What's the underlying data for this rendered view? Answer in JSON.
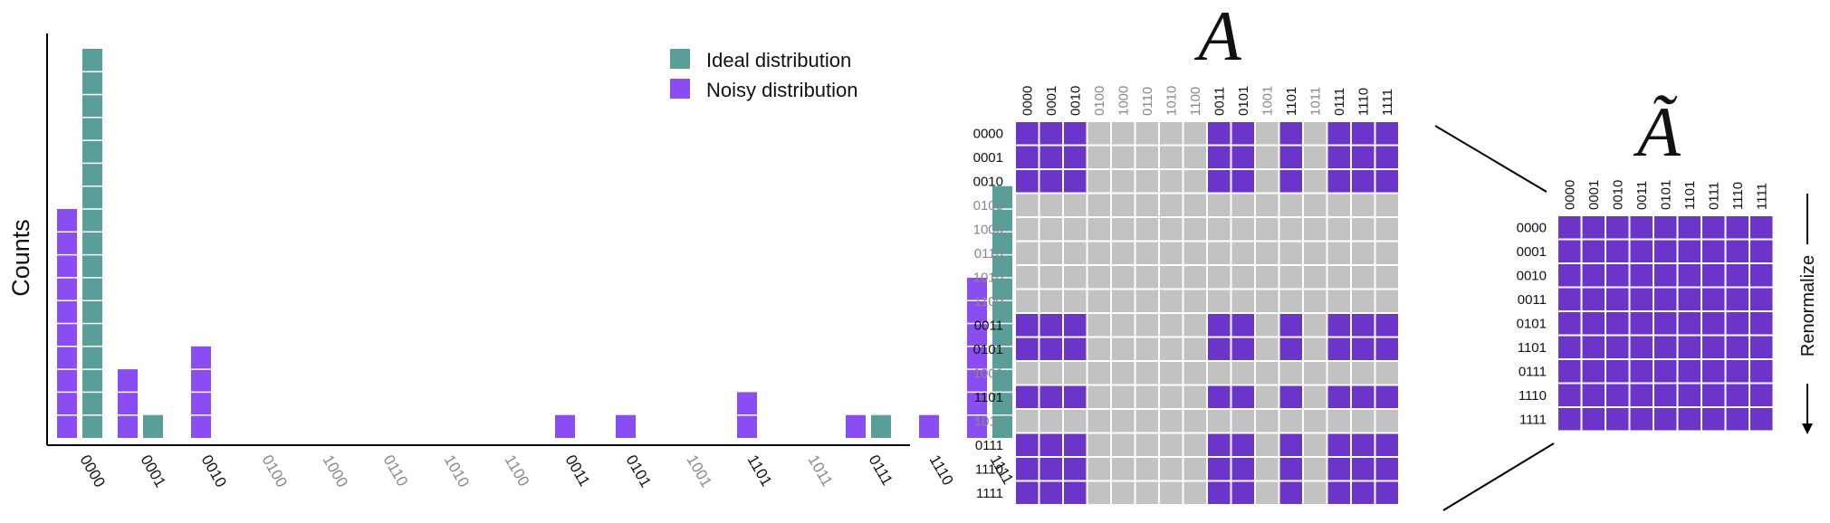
{
  "colors": {
    "ideal": "#5a9e9a",
    "noisy": "#8a4df2",
    "matrix_on": "#6a35c8",
    "matrix_off": "#c2c2c2",
    "dim_text": "#888888"
  },
  "chart_data": [
    {
      "type": "bar",
      "ylabel": "Counts",
      "xlabel": "",
      "grid": false,
      "legend_position": "top-right",
      "categories": [
        "0000",
        "0001",
        "0010",
        "0100",
        "1000",
        "0110",
        "1010",
        "1100",
        "0011",
        "0101",
        "1001",
        "1101",
        "1011",
        "0111",
        "1110",
        "1111"
      ],
      "dimmed_categories": [
        "0100",
        "1000",
        "0110",
        "1010",
        "1100",
        "1001",
        "1011"
      ],
      "series": [
        {
          "name": "Ideal distribution",
          "values": [
            17,
            1,
            0,
            0,
            0,
            0,
            0,
            0,
            0,
            0,
            0,
            0,
            0,
            1,
            0,
            11
          ]
        },
        {
          "name": "Noisy distribution",
          "values": [
            10,
            3,
            4,
            0,
            0,
            0,
            0,
            0,
            1,
            1,
            0,
            2,
            0,
            1,
            1,
            7
          ]
        }
      ]
    },
    {
      "type": "heatmap",
      "title": "A",
      "labels": [
        "0000",
        "0001",
        "0010",
        "0100",
        "1000",
        "0110",
        "1010",
        "1100",
        "0011",
        "0101",
        "1001",
        "1101",
        "1011",
        "0111",
        "1110",
        "1111"
      ],
      "dimmed_labels": [
        "0100",
        "1000",
        "0110",
        "1010",
        "1100",
        "1001",
        "1011"
      ],
      "kept_labels": [
        "0000",
        "0001",
        "0010",
        "0011",
        "0101",
        "1101",
        "0111",
        "1110",
        "1111"
      ]
    },
    {
      "type": "heatmap",
      "title": "Ã",
      "labels": [
        "0000",
        "0001",
        "0010",
        "0011",
        "0101",
        "1101",
        "0111",
        "1110",
        "1111"
      ],
      "side_label": "Renormalize"
    }
  ]
}
